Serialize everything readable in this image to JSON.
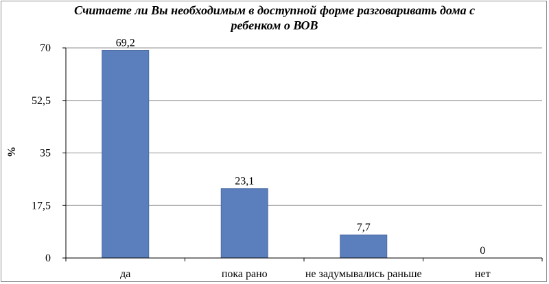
{
  "chart_data": {
    "type": "bar",
    "title_lines": [
      "Считаете ли Вы необходимым в доступной форме разговаривать дома с",
      "ребенком о ВОВ"
    ],
    "xlabel": "",
    "ylabel": "%",
    "categories": [
      "да",
      "пока рано",
      "не задумывались раньше",
      "нет"
    ],
    "values": [
      69.2,
      23.1,
      7.7,
      0
    ],
    "data_labels": [
      "69,2",
      "23,1",
      "7,7",
      "0"
    ],
    "yticks": [
      0,
      17.5,
      35,
      52.5,
      70
    ],
    "ytick_labels": [
      "0",
      "17,5",
      "35",
      "52,5",
      "70"
    ],
    "ylim": [
      0,
      70
    ],
    "grid": true,
    "legend": "none",
    "bar_color": "#5b7fbd",
    "grid_color": "#8c8c8c"
  }
}
